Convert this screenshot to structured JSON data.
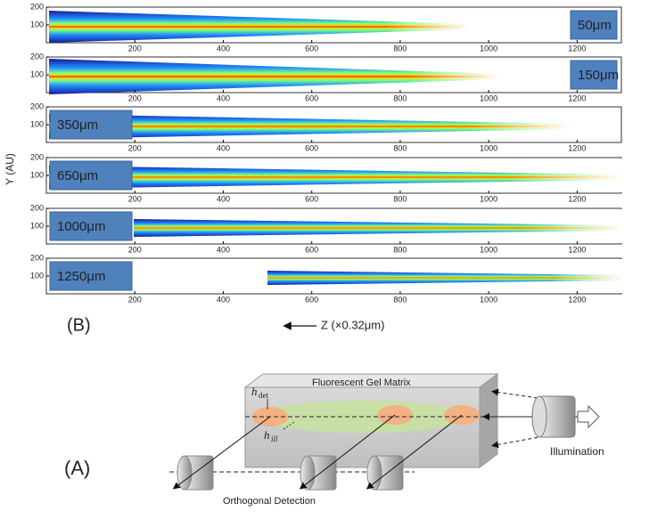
{
  "figure": {
    "y_label": "Y (AU)",
    "z_label": "Z (×0.32μm)",
    "panel_b_label": "(B)",
    "xlim": [
      0,
      1300
    ],
    "ylim": [
      0,
      200
    ],
    "xticks": [
      200,
      400,
      600,
      800,
      1000,
      1200
    ],
    "yticks": [
      100,
      200
    ],
    "panels": [
      {
        "label": "50μm"
      },
      {
        "label": "150μm"
      },
      {
        "label": "350μm"
      },
      {
        "label": "650μm"
      },
      {
        "label": "1000μm"
      },
      {
        "label": "1250μm"
      }
    ]
  },
  "diagram": {
    "panel_label": "(A)",
    "matrix_label": "Fluorescent Gel Matrix",
    "h_det": "h",
    "h_det_sub": "det",
    "h_ill": "h",
    "h_ill_sub": "ill",
    "illumination_label": "Illumination",
    "detection_label": "Orthogonal Detection"
  }
}
